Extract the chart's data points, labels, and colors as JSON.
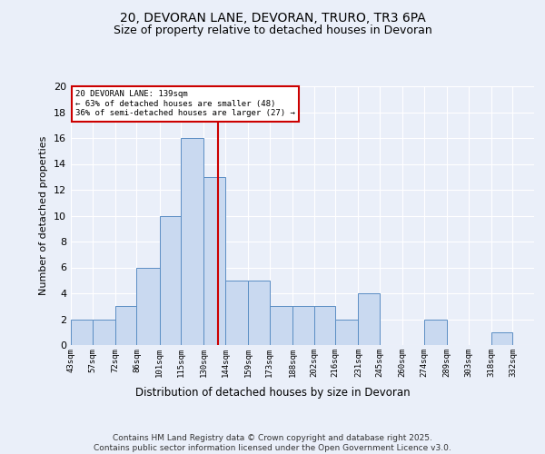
{
  "title1": "20, DEVORAN LANE, DEVORAN, TRURO, TR3 6PA",
  "title2": "Size of property relative to detached houses in Devoran",
  "xlabel": "Distribution of detached houses by size in Devoran",
  "ylabel": "Number of detached properties",
  "footer": "Contains HM Land Registry data © Crown copyright and database right 2025.\nContains public sector information licensed under the Open Government Licence v3.0.",
  "bin_labels": [
    "43sqm",
    "57sqm",
    "72sqm",
    "86sqm",
    "101sqm",
    "115sqm",
    "130sqm",
    "144sqm",
    "159sqm",
    "173sqm",
    "188sqm",
    "202sqm",
    "216sqm",
    "231sqm",
    "245sqm",
    "260sqm",
    "274sqm",
    "289sqm",
    "303sqm",
    "318sqm",
    "332sqm"
  ],
  "bar_heights": [
    2,
    2,
    3,
    6,
    10,
    16,
    13,
    5,
    5,
    3,
    3,
    3,
    2,
    4,
    0,
    0,
    2,
    0,
    0,
    1,
    0
  ],
  "bar_color": "#c9d9f0",
  "bar_edge_color": "#5b8ec4",
  "vline_x": 139,
  "bin_edges": [
    43,
    57,
    72,
    86,
    101,
    115,
    130,
    144,
    159,
    173,
    188,
    202,
    216,
    231,
    245,
    260,
    274,
    289,
    303,
    318,
    332,
    346
  ],
  "annotation_text": "20 DEVORAN LANE: 139sqm\n← 63% of detached houses are smaller (48)\n36% of semi-detached houses are larger (27) →",
  "annotation_box_color": "#ffffff",
  "annotation_box_edge": "#cc0000",
  "vline_color": "#cc0000",
  "ylim": [
    0,
    20
  ],
  "yticks": [
    0,
    2,
    4,
    6,
    8,
    10,
    12,
    14,
    16,
    18,
    20
  ],
  "bg_color": "#eaeff9",
  "plot_bg_color": "#eaeff9",
  "grid_color": "#ffffff",
  "title1_fontsize": 10,
  "title2_fontsize": 9,
  "xlabel_fontsize": 8.5,
  "ylabel_fontsize": 8,
  "footer_fontsize": 6.5,
  "ann_fontsize": 6.5
}
